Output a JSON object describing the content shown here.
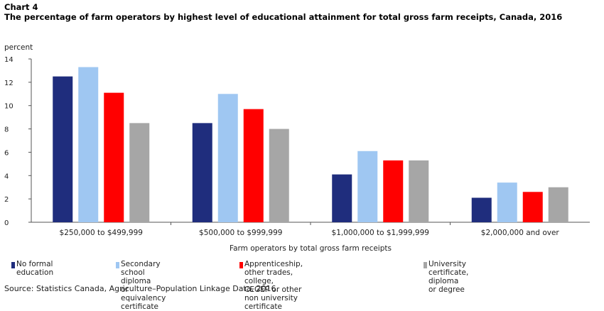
{
  "header": {
    "chart_label": "Chart 4",
    "title": "The percentage of farm operators by highest level of educational attainment for total gross farm receipts, Canada, 2016"
  },
  "chart_data": {
    "type": "bar",
    "categories": [
      "$250,000 to $499,999",
      "$500,000 to $999,999",
      "$1,000,000 to $1,999,999",
      "$2,000,000 and over"
    ],
    "series": [
      {
        "name": "No formal education",
        "color": "#1f2d7d",
        "values": [
          12.5,
          8.5,
          4.1,
          2.1
        ]
      },
      {
        "name": "Secondary school diploma\nor equivalency certificate",
        "color": "#9fc7f2",
        "values": [
          13.3,
          11.0,
          6.1,
          3.4
        ]
      },
      {
        "name": "Apprenticeship, other trades, college,\nCEGEP or other non university certificate",
        "color": "#ff0000",
        "values": [
          11.1,
          9.7,
          5.3,
          2.6
        ]
      },
      {
        "name": "University certificate, diploma or degree",
        "color": "#a6a6a6",
        "values": [
          8.5,
          8.0,
          5.3,
          3.0
        ]
      }
    ],
    "ylabel": "percent",
    "xlabel": "Farm operators by total gross farm receipts",
    "yticks": [
      0,
      2,
      4,
      6,
      8,
      10,
      12,
      14
    ],
    "ylim": [
      0,
      14
    ],
    "grid": false,
    "legend_position": "bottom"
  },
  "footer": {
    "source": "Source: Statistics Canada, Agriculture–Population Linkage Data, 2016."
  }
}
